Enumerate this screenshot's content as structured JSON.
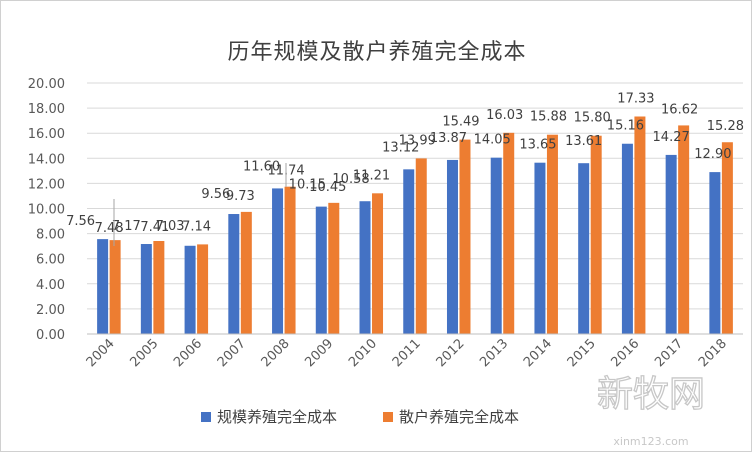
{
  "chart_data": {
    "type": "bar",
    "title": "历年规模及散户养殖完全成本",
    "xlabel": "",
    "ylabel": "",
    "ylim": [
      0,
      20
    ],
    "y_ticks": [
      "0.00",
      "2.00",
      "4.00",
      "6.00",
      "8.00",
      "10.00",
      "12.00",
      "14.00",
      "16.00",
      "18.00",
      "20.00"
    ],
    "categories": [
      "2004",
      "2005",
      "2006",
      "2007",
      "2008",
      "2009",
      "2010",
      "2011",
      "2012",
      "2013",
      "2014",
      "2015",
      "2016",
      "2017",
      "2018"
    ],
    "series": [
      {
        "name": "规模养殖完全成本",
        "color": "#4472C4",
        "values": [
          7.56,
          7.17,
          7.03,
          9.56,
          11.6,
          10.15,
          10.58,
          13.12,
          13.87,
          14.05,
          13.65,
          13.61,
          15.16,
          14.27,
          12.9
        ],
        "labels": [
          "7.56",
          "7.17",
          "7.03",
          "9.56",
          "11.60",
          "10.15",
          "10.58",
          "13.12",
          "13.87",
          "14.05",
          "13.65",
          "13.61",
          "15.16",
          "14.27",
          "12.90"
        ]
      },
      {
        "name": "散户养殖完全成本",
        "color": "#ED7D31",
        "values": [
          7.48,
          7.41,
          7.14,
          9.73,
          11.74,
          10.45,
          11.21,
          13.99,
          15.49,
          16.03,
          15.88,
          15.8,
          17.33,
          16.62,
          15.28
        ],
        "labels": [
          "7.48",
          "7.41",
          "7.14",
          "9.73",
          "11.74",
          "10.45",
          "11.21",
          "13.99",
          "15.49",
          "16.03",
          "15.88",
          "15.80",
          "17.33",
          "16.62",
          "15.28"
        ]
      }
    ],
    "legend_position": "bottom",
    "grid": true
  },
  "watermark": {
    "text": "新牧网",
    "url": "xinm123.com"
  }
}
